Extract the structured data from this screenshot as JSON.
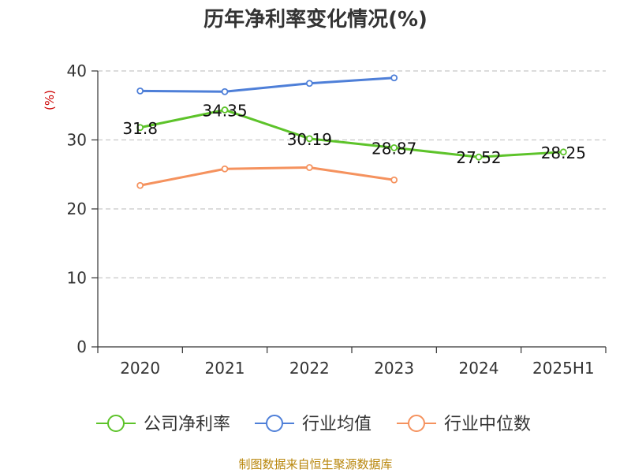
{
  "chart_data": {
    "type": "line",
    "title": "历年净利率变化情况(%)",
    "ylabel": "(%)",
    "xlabel": "",
    "categories": [
      "2020",
      "2021",
      "2022",
      "2023",
      "2024",
      "2025H1"
    ],
    "ylim": [
      0,
      40
    ],
    "yticks": [
      0,
      10,
      20,
      30,
      40
    ],
    "grid": true,
    "legend_position": "bottom",
    "series": [
      {
        "name": "公司净利率",
        "color": "#5dc32a",
        "values": [
          31.8,
          34.35,
          30.19,
          28.87,
          27.52,
          28.25
        ],
        "labels": [
          "31.8",
          "34.35",
          "30.19",
          "28.87",
          "27.52",
          "28.25"
        ]
      },
      {
        "name": "行业均值",
        "color": "#4e7fd8",
        "values": [
          37.1,
          37.0,
          38.2,
          39.0,
          null,
          null
        ]
      },
      {
        "name": "行业中位数",
        "color": "#f5925e",
        "values": [
          23.4,
          25.8,
          26.0,
          24.2,
          null,
          null
        ]
      }
    ]
  },
  "source_text": "制图数据来自恒生聚源数据库"
}
